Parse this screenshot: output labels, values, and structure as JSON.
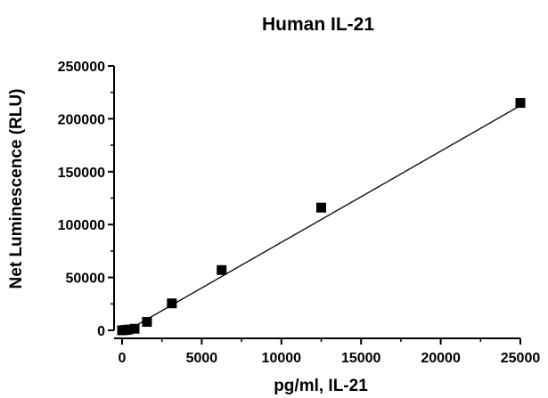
{
  "chart_data": {
    "type": "scatter",
    "title": "Human IL-21",
    "xlabel": "pg/ml, IL-21",
    "ylabel": "Net Luminescence (RLU)",
    "xlim": [
      0,
      25000
    ],
    "ylim": [
      0,
      250000
    ],
    "x_ticks": [
      0,
      5000,
      10000,
      15000,
      20000,
      25000
    ],
    "y_ticks": [
      0,
      50000,
      100000,
      150000,
      200000,
      250000
    ],
    "x_tick_labels": [
      "0",
      "5000",
      "10000",
      "15000",
      "20000",
      "25000"
    ],
    "y_tick_labels": [
      "0",
      "50000",
      "100000",
      "150000",
      "200000",
      "250000"
    ],
    "grid": false,
    "legend": "none",
    "series": [
      {
        "marker": "square",
        "color": "#000000",
        "x": [
          0,
          195,
          391,
          781,
          1563,
          3125,
          6250,
          12500,
          25000
        ],
        "y": [
          0,
          300,
          700,
          1500,
          8000,
          25500,
          57000,
          116000,
          215000
        ]
      }
    ],
    "fit_line": {
      "type": "linear",
      "color": "#000000",
      "x": [
        0,
        25000
      ],
      "y": [
        -3000,
        212500
      ]
    }
  }
}
